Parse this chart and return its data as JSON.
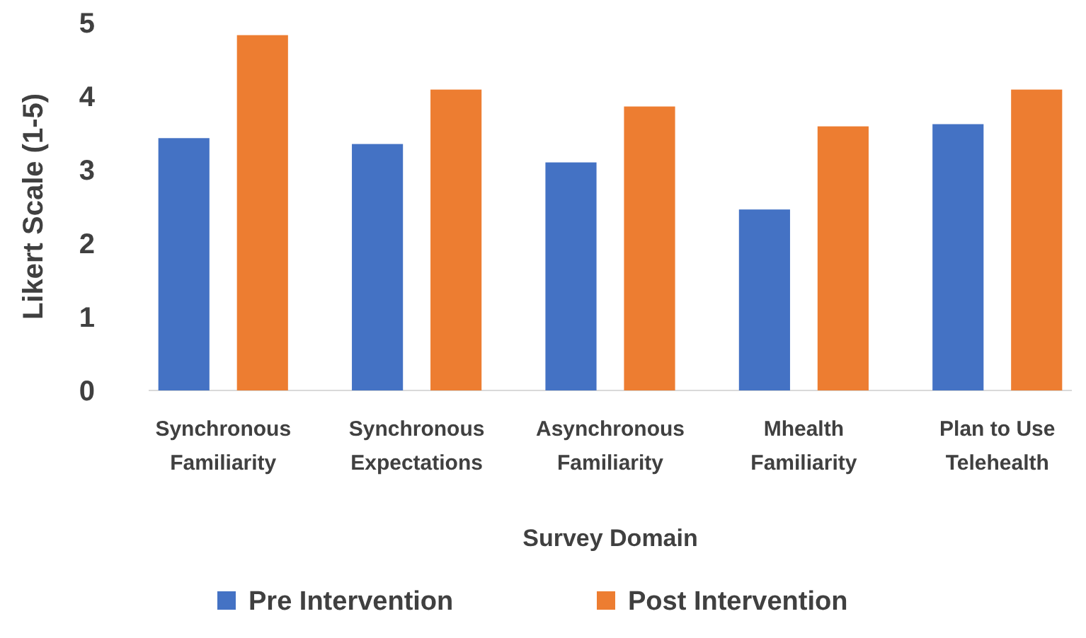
{
  "chart_data": {
    "type": "bar",
    "xlabel": "Survey Domain",
    "ylabel": "Likert Scale (1-5)",
    "categories": [
      "Synchronous Familiarity",
      "Synchronous Expectations",
      "Asynchronous Familiarity",
      "Mhealth Familiarity",
      "Plan to Use Telehealth"
    ],
    "series": [
      {
        "name": "Pre Intervention",
        "color": "#4472c4",
        "values": [
          3.43,
          3.35,
          3.1,
          2.46,
          3.62
        ]
      },
      {
        "name": "Post Intervention",
        "color": "#ed7d31",
        "values": [
          4.83,
          4.09,
          3.86,
          3.59,
          4.09
        ]
      }
    ],
    "ylim": [
      0,
      5
    ],
    "yticks": [
      0,
      1,
      2,
      3,
      4,
      5
    ],
    "grid": false,
    "legend": "bottom"
  }
}
